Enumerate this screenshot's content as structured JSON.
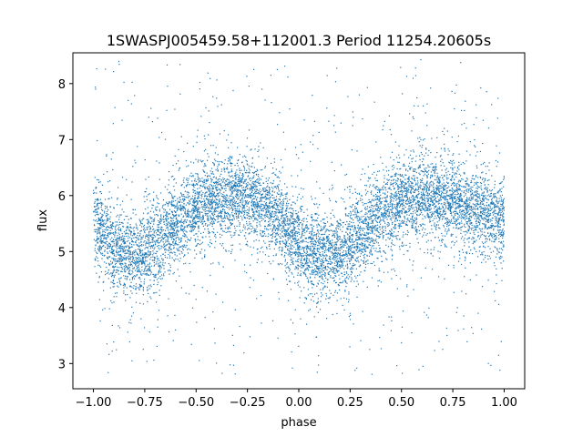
{
  "chart_data": {
    "type": "scatter",
    "title": "1SWASPJ005459.58+112001.3 Period 11254.20605s",
    "xlabel": "phase",
    "ylabel": "flux",
    "xlim": [
      -1.1,
      1.1
    ],
    "ylim": [
      2.55,
      8.55
    ],
    "xticks": [
      -1.0,
      -0.75,
      -0.5,
      -0.25,
      0.0,
      0.25,
      0.5,
      0.75,
      1.0
    ],
    "xtick_labels": [
      "−1.00",
      "−0.75",
      "−0.50",
      "−0.25",
      "0.00",
      "0.25",
      "0.50",
      "0.75",
      "1.00"
    ],
    "yticks": [
      3,
      4,
      5,
      6,
      7,
      8
    ],
    "ytick_labels": [
      "3",
      "4",
      "5",
      "6",
      "7",
      "8"
    ],
    "grid": false,
    "point_color": "#1f77b4",
    "series": [
      {
        "x_range": [
          -1.0,
          1.0
        ],
        "curve_phase": [
          -1.0,
          -0.95,
          -0.9,
          -0.85,
          -0.8,
          -0.75,
          -0.7,
          -0.65,
          -0.6,
          -0.55,
          -0.5,
          -0.45,
          -0.4,
          -0.35,
          -0.3,
          -0.25,
          -0.2,
          -0.15,
          -0.1,
          -0.05,
          0.0,
          0.05,
          0.1,
          0.15,
          0.2,
          0.25,
          0.3,
          0.35,
          0.4,
          0.45,
          0.5,
          0.55,
          0.6,
          0.65,
          0.7,
          0.75,
          0.8,
          0.85,
          0.9,
          0.95,
          1.0
        ],
        "curve_flux": [
          5.55,
          5.3,
          5.1,
          4.97,
          4.93,
          4.98,
          5.12,
          5.32,
          5.5,
          5.68,
          5.8,
          5.88,
          5.93,
          5.96,
          5.97,
          5.95,
          5.9,
          5.78,
          5.6,
          5.38,
          5.15,
          4.98,
          4.92,
          4.93,
          4.98,
          5.12,
          5.32,
          5.5,
          5.68,
          5.8,
          5.88,
          5.93,
          5.96,
          5.97,
          5.95,
          5.9,
          5.85,
          5.78,
          5.7,
          5.62,
          5.55
        ],
        "scatter_band": 0.35,
        "outlier_range": [
          2.8,
          8.45
        ]
      }
    ]
  }
}
